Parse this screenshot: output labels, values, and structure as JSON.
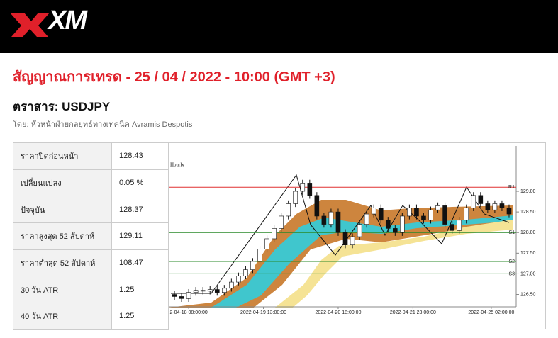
{
  "header": {
    "logo": "XM"
  },
  "title": "สัญญาณการเทรด - 25 / 04 / 2022 - 10:00 (GMT +3)",
  "instrument": "ตราสาร: USDJPY",
  "byline": "โดย: หัวหน้าฝ่ายกลยุทธ์ทางเทคนิค Avramis Despotis",
  "table": {
    "rows": [
      [
        "ราคาปิดก่อนหน้า",
        "128.43"
      ],
      [
        "เปลี่ยนแปลง",
        "0.05 %"
      ],
      [
        "ปัจจุบัน",
        "128.37"
      ],
      [
        "ราคาสูงสุด 52 สัปดาห์",
        "129.11"
      ],
      [
        "ราคาต่ำสุด 52 สัปดาห์",
        "108.47"
      ],
      [
        "30 วัน ATR",
        "1.25"
      ],
      [
        "40 วัน ATR",
        "1.25"
      ]
    ]
  },
  "chart_data": {
    "type": "candlestick",
    "label": "Hourly",
    "open": [
      126.5,
      126.45,
      126.4,
      126.55,
      126.6,
      126.58,
      126.62,
      126.55,
      126.65,
      126.8,
      126.95,
      127.1,
      127.3,
      127.6,
      127.85,
      128.1,
      128.4,
      128.7,
      129.0,
      129.2,
      128.9,
      128.4,
      128.2,
      128.5,
      128.0,
      127.7,
      127.9,
      128.2,
      128.45,
      128.6,
      128.3,
      128.1,
      128.0,
      128.4,
      128.6,
      128.4,
      128.3,
      128.55,
      128.65,
      128.2,
      128.05,
      128.3,
      128.6,
      128.9,
      128.7,
      128.55,
      128.7,
      128.6
    ],
    "high": [
      126.58,
      126.53,
      126.63,
      126.68,
      126.68,
      126.7,
      126.7,
      126.73,
      126.88,
      127.03,
      127.18,
      127.38,
      127.68,
      127.93,
      128.18,
      128.48,
      128.78,
      129.08,
      129.28,
      129.28,
      128.98,
      128.48,
      128.58,
      128.58,
      128.08,
      127.98,
      128.28,
      128.53,
      128.68,
      128.68,
      128.38,
      128.18,
      128.48,
      128.68,
      128.68,
      128.48,
      128.63,
      128.73,
      128.73,
      128.28,
      128.38,
      128.68,
      128.98,
      128.98,
      128.78,
      128.78,
      128.78,
      128.68
    ],
    "low": [
      126.37,
      126.32,
      126.32,
      126.47,
      126.5,
      126.5,
      126.47,
      126.47,
      126.57,
      126.72,
      126.87,
      127.02,
      127.22,
      127.52,
      127.77,
      128.02,
      128.32,
      128.62,
      128.92,
      128.82,
      128.32,
      128.12,
      128.12,
      127.92,
      127.62,
      127.62,
      127.82,
      128.12,
      128.37,
      128.22,
      128.02,
      127.92,
      127.92,
      128.32,
      128.32,
      128.22,
      128.22,
      128.47,
      128.12,
      127.97,
      127.97,
      128.22,
      128.52,
      128.62,
      128.47,
      128.47,
      128.52,
      128.37
    ],
    "close": [
      126.45,
      126.4,
      126.55,
      126.6,
      126.58,
      126.62,
      126.55,
      126.65,
      126.8,
      126.95,
      127.1,
      127.3,
      127.6,
      127.85,
      128.1,
      128.4,
      128.7,
      129.0,
      129.2,
      128.9,
      128.4,
      128.2,
      128.5,
      128.0,
      127.7,
      127.9,
      128.2,
      128.45,
      128.6,
      128.3,
      128.1,
      128.0,
      128.4,
      128.6,
      128.4,
      128.3,
      128.55,
      128.65,
      128.2,
      128.05,
      128.3,
      128.6,
      128.9,
      128.7,
      128.55,
      128.7,
      128.6,
      128.45
    ],
    "xlim": [
      -0.5,
      47.5
    ],
    "xticks": [
      {
        "value": 2,
        "label": "2-04-18 08:00:00"
      },
      {
        "value": 12.5,
        "label": "2022-04-19 13:00:00"
      },
      {
        "value": 23,
        "label": "2022-04-20 18:00:00"
      },
      {
        "value": 33.5,
        "label": "2022-04-21 23:00:00"
      },
      {
        "value": 44.5,
        "label": "2022-04-25 02:00:00"
      }
    ],
    "ylim": [
      126.2,
      130.1
    ],
    "yticks": [
      {
        "value": 126.5,
        "label": "126.50"
      },
      {
        "value": 127,
        "label": "127.00"
      },
      {
        "value": 127.5,
        "label": "127.50"
      },
      {
        "value": 128,
        "label": "128.00"
      },
      {
        "value": 128.5,
        "label": "128.50"
      },
      {
        "value": 129,
        "label": "129.00"
      }
    ],
    "levels": [
      {
        "name": "R1",
        "value": 129.1,
        "color": "#e03030"
      },
      {
        "name": "S1",
        "value": 128.0,
        "color": "#2a8a2a"
      },
      {
        "name": "S2",
        "value": 127.3,
        "color": "#2a8a2a"
      },
      {
        "name": "S3",
        "value": 127.0,
        "color": "#2a8a2a"
      }
    ]
  }
}
